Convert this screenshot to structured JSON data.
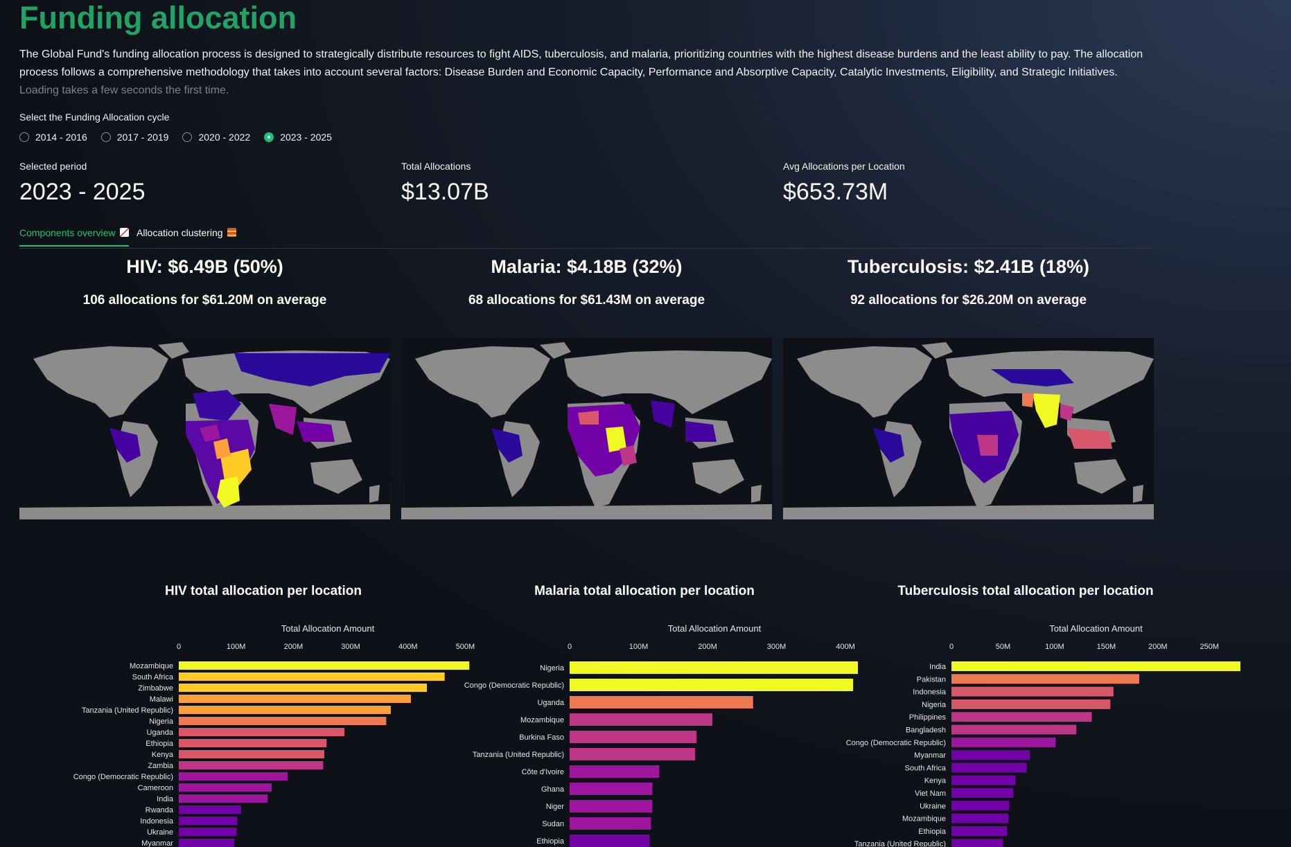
{
  "header": {
    "title": "Funding allocation",
    "description": "The Global Fund's funding allocation process is designed to strategically distribute resources to fight AIDS, tuberculosis, and malaria, prioritizing countries with the highest disease burdens and the least ability to pay. The allocation process follows a comprehensive methodology that takes into account several factors: Disease Burden and Economic Capacity, Performance and Absorptive Capacity, Catalytic Investments, Eligibility, and Strategic Initiatives.",
    "loading_note": "Loading takes a few seconds the first time."
  },
  "cycle_select": {
    "label": "Select the Funding Allocation cycle",
    "options": [
      "2014 - 2016",
      "2017 - 2019",
      "2020 - 2022",
      "2023 - 2025"
    ],
    "selected": "2023 - 2025",
    "accent": "#21c07a"
  },
  "metrics": {
    "period": {
      "label": "Selected period",
      "value": "2023 - 2025"
    },
    "total": {
      "label": "Total Allocations",
      "value": "$13.07B"
    },
    "avg": {
      "label": "Avg Allocations per Location",
      "value": "$653.73M"
    }
  },
  "tabs": [
    {
      "label": "Components overview",
      "icon": "chart-increasing-icon",
      "active": true
    },
    {
      "label": "Allocation clustering",
      "icon": "abacus-icon",
      "active": false
    }
  ],
  "components": [
    {
      "key": "hiv",
      "headline": "HIV: $6.49B (50%)",
      "subline": "106 allocations for $61.20M on average",
      "map_icon": "world-map-hiv"
    },
    {
      "key": "malaria",
      "headline": "Malaria: $4.18B (32%)",
      "subline": "68 allocations for $61.43M on average",
      "map_icon": "world-map-malaria"
    },
    {
      "key": "tb",
      "headline": "Tuberculosis: $2.41B (18%)",
      "subline": "92 allocations for $26.20M on average",
      "map_icon": "world-map-tb"
    }
  ],
  "chart_data": [
    {
      "type": "bar",
      "orientation": "horizontal",
      "title": "HIV total allocation per location",
      "xlabel": "Total Allocation Amount",
      "xlim": [
        0,
        520
      ],
      "xticks": [
        "0",
        "100M",
        "200M",
        "300M",
        "400M",
        "500M"
      ],
      "unit": "M",
      "categories": [
        "Mozambique",
        "South Africa",
        "Zimbabwe",
        "Malawi",
        "Tanzania (United Republic)",
        "Nigeria",
        "Uganda",
        "Ethiopia",
        "Kenya",
        "Zambia",
        "Congo (Democratic Republic)",
        "Cameroon",
        "India",
        "Rwanda",
        "Indonesia",
        "Ukraine",
        "Myanmar"
      ],
      "values": [
        507,
        464,
        433,
        405,
        370,
        362,
        289,
        258,
        254,
        252,
        190,
        162,
        155,
        109,
        102,
        101,
        97
      ]
    },
    {
      "type": "bar",
      "orientation": "horizontal",
      "title": "Malaria total allocation per location",
      "xlabel": "Total Allocation Amount",
      "xlim": [
        0,
        420
      ],
      "xticks": [
        "0",
        "100M",
        "200M",
        "300M",
        "400M"
      ],
      "unit": "M",
      "categories": [
        "Nigeria",
        "Congo (Democratic Republic)",
        "Uganda",
        "Mozambique",
        "Burkina Faso",
        "Tanzania (United Republic)",
        "Côte d'Ivoire",
        "Ghana",
        "Niger",
        "Sudan",
        "Ethiopia"
      ],
      "values": [
        418,
        411,
        266,
        207,
        184,
        182,
        130,
        120,
        120,
        118,
        116
      ]
    },
    {
      "type": "bar",
      "orientation": "horizontal",
      "title": "Tuberculosis total allocation per location",
      "xlabel": "Total Allocation Amount",
      "xlim": [
        0,
        280
      ],
      "xticks": [
        "0",
        "50M",
        "100M",
        "150M",
        "200M",
        "250M"
      ],
      "unit": "M",
      "categories": [
        "India",
        "Pakistan",
        "Indonesia",
        "Nigeria",
        "Philippines",
        "Bangladesh",
        "Congo (Democratic Republic)",
        "Myanmar",
        "South Africa",
        "Kenya",
        "Viet Nam",
        "Ukraine",
        "Mozambique",
        "Ethiopia",
        "Tanzania (United Republic)"
      ],
      "values": [
        280,
        182,
        157,
        154,
        136,
        121,
        101,
        76,
        73,
        62,
        60,
        56,
        55,
        54,
        50
      ]
    }
  ],
  "colors": {
    "map_land": "#8c8c8c",
    "scale": [
      "#0d0887",
      "#46039f",
      "#7201a8",
      "#9c179e",
      "#bd3786",
      "#d8576b",
      "#ed7953",
      "#fb9f3a",
      "#fdca26",
      "#f0f921"
    ]
  }
}
